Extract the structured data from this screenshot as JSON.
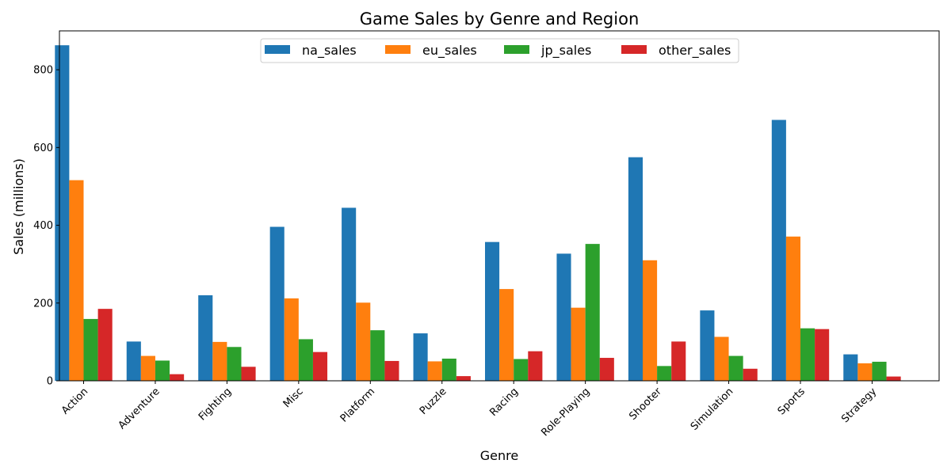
{
  "chart_data": {
    "type": "bar",
    "title": "Game Sales by Genre and Region",
    "xlabel": "Genre",
    "ylabel": "Sales (millions)",
    "ylim": [
      0,
      900
    ],
    "yticks": [
      0,
      200,
      400,
      600,
      800
    ],
    "grid": false,
    "legend_position": "top-center",
    "categories": [
      "Action",
      "Adventure",
      "Fighting",
      "Misc",
      "Platform",
      "Puzzle",
      "Racing",
      "Role-Playing",
      "Shooter",
      "Simulation",
      "Sports",
      "Strategy"
    ],
    "series": [
      {
        "name": "na_sales",
        "color": "#1f77b4",
        "values": [
          863,
          101,
          220,
          396,
          445,
          122,
          357,
          327,
          575,
          181,
          671,
          68
        ]
      },
      {
        "name": "eu_sales",
        "color": "#ff7f0e",
        "values": [
          516,
          64,
          100,
          212,
          201,
          50,
          236,
          188,
          310,
          113,
          371,
          45
        ]
      },
      {
        "name": "jp_sales",
        "color": "#2ca02c",
        "values": [
          159,
          52,
          87,
          107,
          130,
          57,
          56,
          352,
          38,
          64,
          135,
          49
        ]
      },
      {
        "name": "other_sales",
        "color": "#d62728",
        "values": [
          185,
          17,
          36,
          74,
          51,
          12,
          76,
          59,
          101,
          31,
          133,
          11
        ]
      }
    ]
  }
}
